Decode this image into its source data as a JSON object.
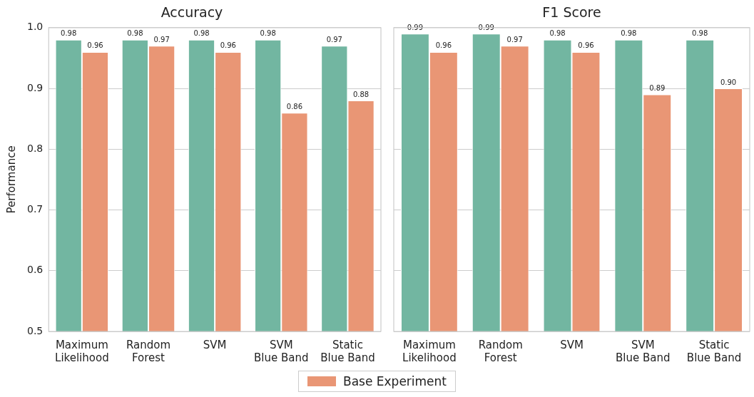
{
  "chart_data": [
    {
      "type": "bar",
      "title": "Accuracy",
      "ylabel": "Performance",
      "categories": [
        "Maximum\nLikelihood",
        "Random\nForest",
        "SVM",
        "SVM\nBlue Band",
        "Static\nBlue Band"
      ],
      "ylim": [
        0.5,
        1
      ],
      "yticks": [
        0.5,
        0.6,
        0.7,
        0.8,
        0.9,
        {
          "value": 1,
          "label": "1.0"
        }
      ],
      "grid": "y",
      "legend": "bottom",
      "series": [
        {
          "color": "#72b6a1",
          "values": [
            0.98,
            0.98,
            0.98,
            0.98,
            0.97
          ],
          "value_labels": [
            "0.98",
            "0.98",
            "0.98",
            "0.98",
            "0.97"
          ]
        },
        {
          "name": "Base Experiment",
          "color": "#e99675",
          "values": [
            0.96,
            0.97,
            0.96,
            0.86,
            0.88
          ],
          "value_labels": [
            "0.96",
            "0.97",
            "0.96",
            "0.86",
            "0.88"
          ]
        }
      ]
    },
    {
      "type": "bar",
      "title": "F1 Score",
      "categories": [
        "Maximum\nLikelihood",
        "Random\nForest",
        "SVM",
        "SVM\nBlue Band",
        "Static\nBlue Band"
      ],
      "ylim": [
        0.5,
        1
      ],
      "yticks": [
        0.5,
        0.6,
        0.7,
        0.8,
        0.9,
        1
      ],
      "grid": "y",
      "tick_labels": "x",
      "series": [
        {
          "color": "#72b6a1",
          "values": [
            0.99,
            0.99,
            0.98,
            0.98,
            0.98
          ],
          "value_labels": [
            "0.99",
            "0.99",
            "0.98",
            "0.98",
            "0.98"
          ]
        },
        {
          "color": "#e99675",
          "values": [
            0.96,
            0.97,
            0.96,
            0.89,
            0.9
          ],
          "value_labels": [
            "0.96",
            "0.97",
            "0.96",
            "0.89",
            "0.90"
          ]
        }
      ]
    }
  ]
}
